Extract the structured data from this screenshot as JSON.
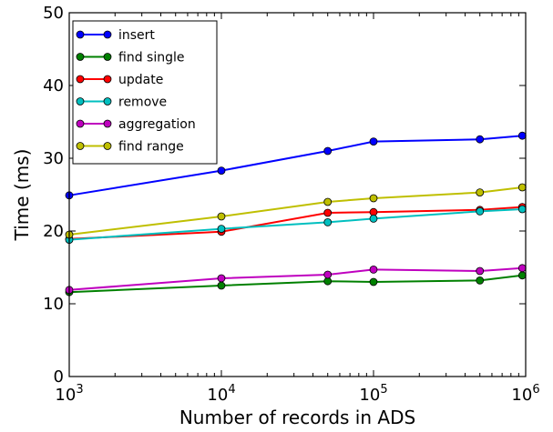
{
  "chart_data": {
    "type": "line",
    "title": "",
    "xlabel": "Number of records in ADS",
    "ylabel": "Time (ms)",
    "xscale": "log",
    "xlim": [
      1000,
      1000000
    ],
    "ylim": [
      0,
      50
    ],
    "x": [
      1000,
      10000,
      50000,
      100000,
      500000,
      950000
    ],
    "x_ticks": [
      {
        "value": 1000,
        "base": "10",
        "exp": "3"
      },
      {
        "value": 10000,
        "base": "10",
        "exp": "4"
      },
      {
        "value": 100000,
        "base": "10",
        "exp": "5"
      },
      {
        "value": 1000000,
        "base": "10",
        "exp": "6"
      }
    ],
    "y_ticks": [
      0,
      10,
      20,
      30,
      40,
      50
    ],
    "grid": false,
    "legend": {
      "position": "top-left"
    },
    "series": [
      {
        "name": "insert",
        "color": "#0000ff",
        "values": [
          24.9,
          28.3,
          31.0,
          32.3,
          32.6,
          33.1
        ]
      },
      {
        "name": "find single",
        "color": "#008000",
        "values": [
          11.6,
          12.5,
          13.1,
          13.0,
          13.2,
          13.9
        ]
      },
      {
        "name": "update",
        "color": "#ff0000",
        "values": [
          18.9,
          19.9,
          22.5,
          22.6,
          22.9,
          23.3
        ]
      },
      {
        "name": "remove",
        "color": "#00bfbf",
        "values": [
          18.8,
          20.3,
          21.2,
          21.7,
          22.7,
          23.0
        ]
      },
      {
        "name": "aggregation",
        "color": "#bf00bf",
        "values": [
          11.9,
          13.5,
          14.0,
          14.7,
          14.5,
          14.9
        ]
      },
      {
        "name": "find range",
        "color": "#bfbf00",
        "values": [
          19.5,
          22.0,
          24.0,
          24.5,
          25.3,
          26.0
        ]
      }
    ]
  }
}
